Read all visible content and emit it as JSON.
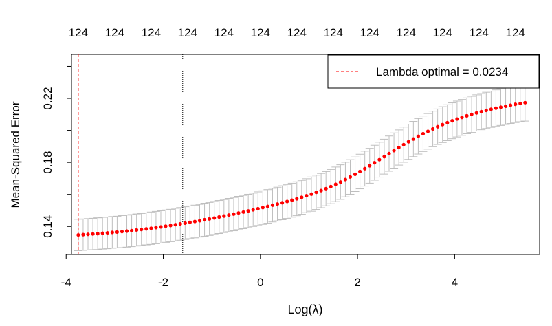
{
  "chart_data": {
    "type": "scatter",
    "title": "",
    "xlabel": "Log(λ)",
    "ylabel": "Mean-Squared Error",
    "xlim": [
      -3.89,
      5.75
    ],
    "ylim": [
      0.1225,
      0.2475
    ],
    "x_ticks": [
      -4,
      -2,
      0,
      2,
      4
    ],
    "x_tick_labels": [
      "-4",
      "-2",
      "0",
      "2",
      "4"
    ],
    "y_ticks": [
      0.14,
      0.16,
      0.18,
      0.2,
      0.22,
      0.24
    ],
    "y_tick_labels": [
      "0.14",
      "",
      "0.18",
      "",
      "0.22",
      ""
    ],
    "top_axis_ticks": [
      -3.75,
      -3.0,
      -2.25,
      -1.5,
      -0.75,
      0.0,
      0.75,
      1.5,
      2.25,
      3.0,
      3.75,
      4.5,
      5.25
    ],
    "top_axis_labels": [
      "124",
      "124",
      "124",
      "124",
      "124",
      "124",
      "124",
      "124",
      "124",
      "124",
      "124",
      "124",
      "124"
    ],
    "series": [
      {
        "name": "Mean-Squared Error",
        "color": "#ff0000",
        "marker": "dot",
        "x": [
          -3.75,
          -3.65,
          -3.55,
          -3.45,
          -3.35,
          -3.25,
          -3.15,
          -3.05,
          -2.95,
          -2.85,
          -2.75,
          -2.65,
          -2.55,
          -2.45,
          -2.35,
          -2.25,
          -2.15,
          -2.05,
          -1.95,
          -1.85,
          -1.75,
          -1.65,
          -1.55,
          -1.45,
          -1.35,
          -1.25,
          -1.15,
          -1.05,
          -0.95,
          -0.85,
          -0.75,
          -0.65,
          -0.55,
          -0.45,
          -0.35,
          -0.25,
          -0.15,
          -0.05,
          0.05,
          0.15,
          0.25,
          0.35,
          0.45,
          0.55,
          0.65,
          0.75,
          0.85,
          0.95,
          1.05,
          1.15,
          1.25,
          1.35,
          1.45,
          1.55,
          1.65,
          1.75,
          1.85,
          1.95,
          2.05,
          2.15,
          2.25,
          2.35,
          2.45,
          2.55,
          2.65,
          2.75,
          2.85,
          2.95,
          3.05,
          3.15,
          3.25,
          3.35,
          3.45,
          3.55,
          3.65,
          3.75,
          3.85,
          3.95,
          4.05,
          4.15,
          4.25,
          4.35,
          4.45,
          4.55,
          4.65,
          4.75,
          4.85,
          4.95,
          5.05,
          5.15,
          5.25,
          5.35,
          5.45
        ],
        "y": [
          0.1347,
          0.1349,
          0.1351,
          0.1353,
          0.1355,
          0.1358,
          0.136,
          0.1363,
          0.1365,
          0.1368,
          0.1371,
          0.1374,
          0.1378,
          0.1381,
          0.1385,
          0.1389,
          0.1393,
          0.1397,
          0.1402,
          0.1406,
          0.1411,
          0.1416,
          0.1421,
          0.1426,
          0.1431,
          0.1436,
          0.1442,
          0.1447,
          0.1453,
          0.1459,
          0.1465,
          0.1471,
          0.1477,
          0.1484,
          0.149,
          0.1497,
          0.1504,
          0.1511,
          0.1518,
          0.1525,
          0.1533,
          0.154,
          0.1548,
          0.1556,
          0.1564,
          0.1573,
          0.1582,
          0.1592,
          0.1602,
          0.1613,
          0.1624,
          0.1636,
          0.1649,
          0.1663,
          0.1677,
          0.1693,
          0.1709,
          0.1726,
          0.1743,
          0.1761,
          0.1779,
          0.1798,
          0.1817,
          0.1836,
          0.1855,
          0.1874,
          0.1893,
          0.1911,
          0.1929,
          0.1946,
          0.1963,
          0.1979,
          0.1994,
          0.2009,
          0.2023,
          0.2036,
          0.2048,
          0.206,
          0.2071,
          0.2081,
          0.2091,
          0.21,
          0.2109,
          0.2117,
          0.2125,
          0.2132,
          0.2139,
          0.2145,
          0.2151,
          0.2157,
          0.2163,
          0.2168,
          0.2173
        ],
        "error_band_halfwidth": [
          0.0098,
          0.0098,
          0.0098,
          0.0098,
          0.0099,
          0.0099,
          0.0099,
          0.0099,
          0.0099,
          0.01,
          0.01,
          0.01,
          0.01,
          0.01,
          0.01,
          0.0101,
          0.0101,
          0.0101,
          0.0101,
          0.0101,
          0.0102,
          0.0102,
          0.0102,
          0.0102,
          0.0102,
          0.0102,
          0.0103,
          0.0103,
          0.0103,
          0.0103,
          0.0103,
          0.0104,
          0.0104,
          0.0104,
          0.0104,
          0.0104,
          0.0104,
          0.0105,
          0.0105,
          0.0105,
          0.0105,
          0.0105,
          0.0106,
          0.0106,
          0.0106,
          0.0106,
          0.0106,
          0.0106,
          0.0107,
          0.0107,
          0.0107,
          0.0107,
          0.0107,
          0.0108,
          0.0108,
          0.0108,
          0.0108,
          0.0108,
          0.0108,
          0.0109,
          0.0109,
          0.0109,
          0.0109,
          0.0109,
          0.011,
          0.011,
          0.011,
          0.011,
          0.011,
          0.011,
          0.0111,
          0.0111,
          0.0111,
          0.0111,
          0.0111,
          0.0112,
          0.0112,
          0.0112,
          0.0112,
          0.0112,
          0.0112,
          0.0113,
          0.0113,
          0.0113,
          0.0113,
          0.0113,
          0.0114,
          0.0114,
          0.0114,
          0.0114,
          0.0114,
          0.0114,
          0.0115
        ]
      }
    ],
    "error_bar_color": "#bebebe",
    "vertical_lines": [
      {
        "x": -3.75,
        "color": "#ff0000",
        "style": "dashed"
      },
      {
        "x": -1.6,
        "color": "#000000",
        "style": "dotted"
      }
    ],
    "legend": {
      "position": "top-right",
      "entries": [
        {
          "label": "Lambda optimal = 0.0234",
          "color": "#ff0000",
          "style": "dashed"
        }
      ]
    },
    "grid": false
  }
}
